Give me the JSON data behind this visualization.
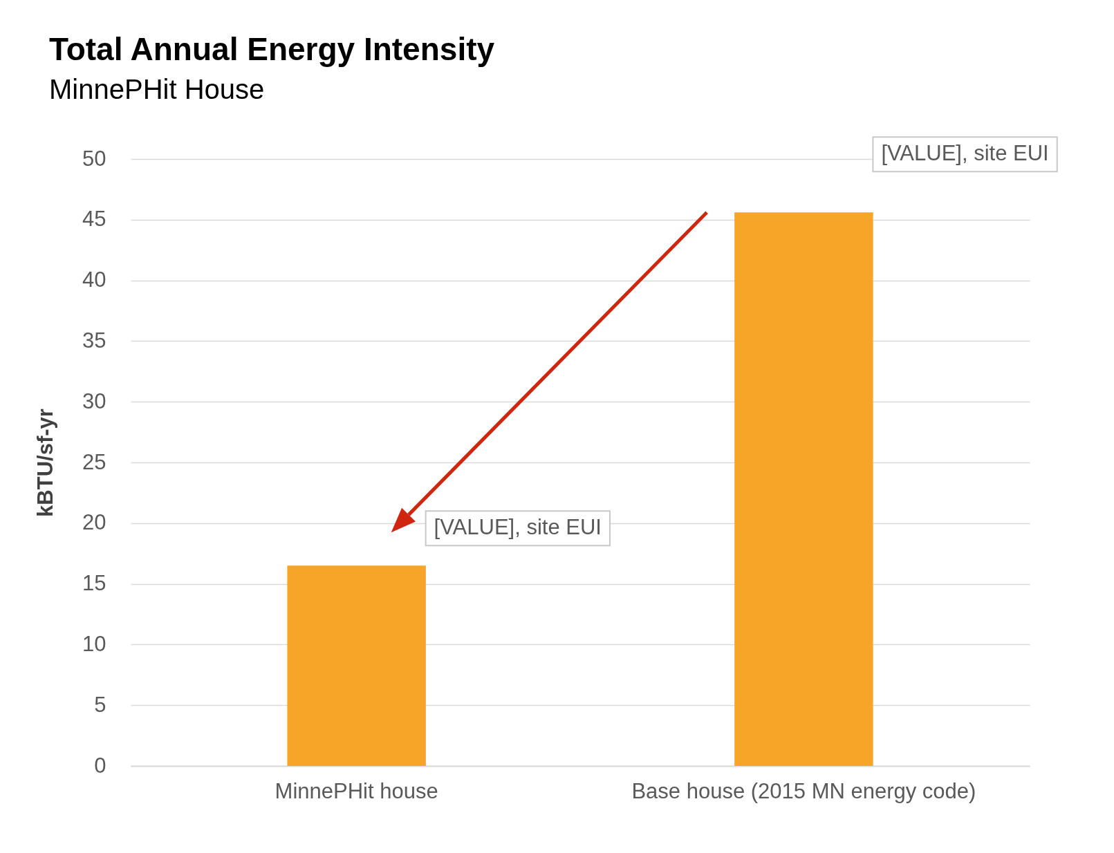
{
  "chart_data": {
    "type": "bar",
    "title": "Total Annual Energy Intensity",
    "subtitle": "MinnePHit House",
    "ylabel": "kBTU/sf-yr",
    "categories": [
      "MinnePHit house",
      "Base house (2015 MN energy code)"
    ],
    "values": [
      16.5,
      45.6
    ],
    "color": "#f7a528",
    "ylim": [
      0,
      50
    ],
    "yticks": [
      0,
      5,
      10,
      15,
      20,
      25,
      30,
      35,
      40,
      45,
      50
    ],
    "grid": "y",
    "annotations": [
      "[VALUE], site EUI",
      "[VALUE], site EUI"
    ]
  }
}
